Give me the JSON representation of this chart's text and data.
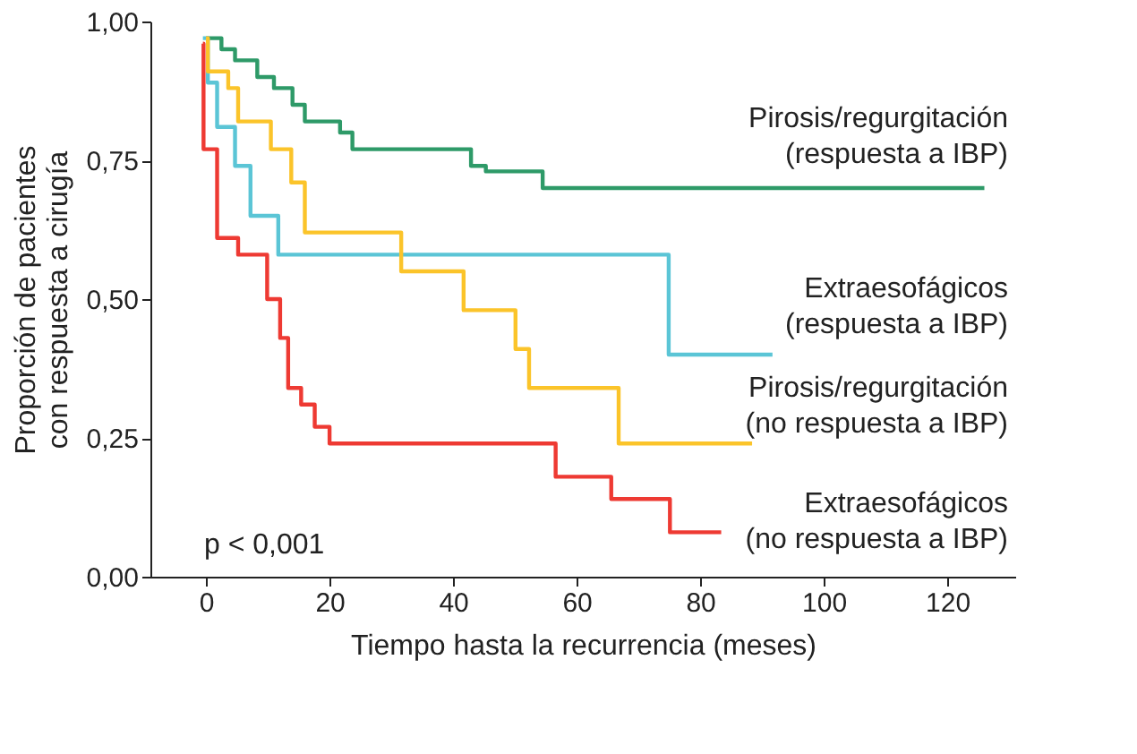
{
  "chart_data": {
    "type": "step",
    "xlabel": "Tiempo hasta la recurrencia (meses)",
    "ylabel": "Proporción de pacientes\ncon respuesta a cirugía",
    "xlim": [
      -9,
      131
    ],
    "xticks": [
      0,
      20,
      40,
      60,
      80,
      100,
      120
    ],
    "ylim": [
      0,
      1
    ],
    "yticks": [
      {
        "value": 0,
        "label": "0,00"
      },
      {
        "value": 0.25,
        "label": "0,25"
      },
      {
        "value": 0.5,
        "label": "0,50"
      },
      {
        "value": 0.75,
        "label": "0,75"
      },
      {
        "value": 1,
        "label": "1,00"
      }
    ],
    "grid": false,
    "marker": "none",
    "line_style": "solid",
    "annotations": [
      "p < 0,001"
    ],
    "series": [
      {
        "name": "Pirosis/regurgitación\n(respuesta a IBP)",
        "color": "#2e9a68",
        "x": [
          0,
          2.5,
          4.7,
          8.3,
          11,
          14,
          16,
          21.7,
          23.7,
          42.9,
          45.3,
          54.5,
          126
        ],
        "values": [
          0.97,
          0.95,
          0.93,
          0.9,
          0.88,
          0.85,
          0.82,
          0.8,
          0.77,
          0.74,
          0.73,
          0.7,
          0.7
        ]
      },
      {
        "name": "Extraesofágicos\n(respuesta a IBP)",
        "color": "#5bc5d6",
        "x": [
          -0.5,
          0.3,
          1.8,
          4.7,
          7.2,
          11.7,
          74.9,
          91.7
        ],
        "values": [
          0.97,
          0.89,
          0.81,
          0.74,
          0.65,
          0.58,
          0.4,
          0.4
        ]
      },
      {
        "name": "Pirosis/regurgitación\n(no respuesta a IBP)",
        "color": "#fbc42a",
        "x": [
          0,
          0.3,
          3.6,
          5.2,
          10.5,
          13.8,
          16,
          31.6,
          41.7,
          50.1,
          52.3,
          66.8,
          88.4
        ],
        "values": [
          0.97,
          0.91,
          0.88,
          0.82,
          0.77,
          0.71,
          0.62,
          0.55,
          0.48,
          0.41,
          0.34,
          0.24,
          0.24
        ]
      },
      {
        "name": "Extraesofágicos\n(no respuesta a IBP)",
        "color": "#ee3a33",
        "x": [
          -0.5,
          -0.4,
          1.8,
          5.2,
          9.9,
          12,
          13.3,
          15.4,
          17.6,
          20,
          56.6,
          65.6,
          75.1,
          83.4
        ],
        "values": [
          0.96,
          0.77,
          0.61,
          0.58,
          0.5,
          0.43,
          0.34,
          0.31,
          0.27,
          0.24,
          0.18,
          0.14,
          0.08,
          0.08
        ]
      }
    ]
  }
}
